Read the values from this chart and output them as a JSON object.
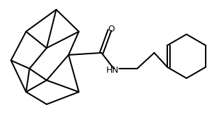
{
  "bg": "#ffffff",
  "bond_lw": 1.5,
  "bond_color": "#000000",
  "text_color": "#000000",
  "font_size": 9,
  "fig_w": 3.18,
  "fig_h": 1.72,
  "dpi": 100
}
